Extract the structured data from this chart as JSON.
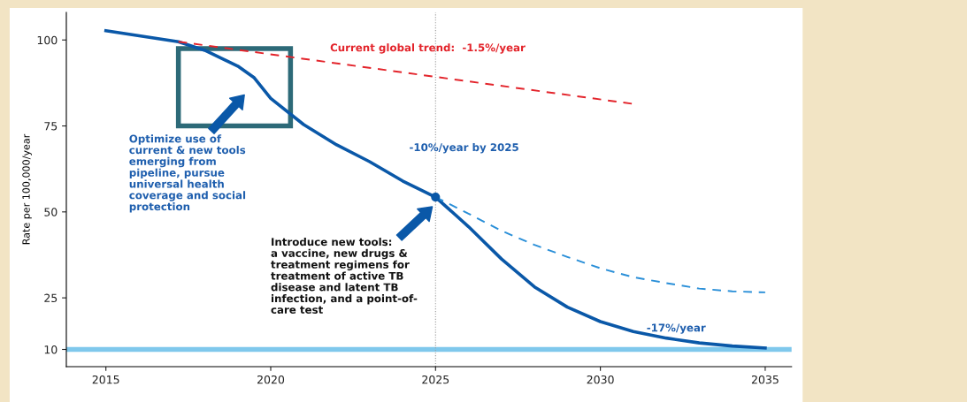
{
  "chart_data": {
    "type": "line",
    "ylabel": "Rate per 100,000/year",
    "xlim": [
      2013.8,
      2035.8
    ],
    "xticks": [
      2015,
      2020,
      2025,
      2030,
      2035
    ],
    "ylim": [
      5,
      108
    ],
    "yticks": [
      10,
      25,
      50,
      75,
      100
    ],
    "series": [
      {
        "color": "#0a58a8",
        "line_style": "solid",
        "x": [
          2015,
          2017.2,
          2018,
          2019,
          2019.5,
          2020,
          2021,
          2022,
          2023,
          2024,
          2025,
          2026,
          2027,
          2028,
          2029,
          2030,
          2031,
          2032,
          2033,
          2034,
          2035
        ],
        "values": [
          102.7,
          99.5,
          97,
          92.4,
          89,
          83,
          75.4,
          69.5,
          64.6,
          59,
          54.3,
          45.7,
          36.3,
          28.2,
          22.3,
          18.1,
          15.2,
          13.3,
          11.9,
          11,
          10.4
        ]
      },
      {
        "color": "#e3242b",
        "line_style": "dashed",
        "x": [
          2017.2,
          2031
        ],
        "values": [
          99.5,
          81.4
        ]
      },
      {
        "color": "#2a8fd8",
        "line_style": "dashed",
        "x": [
          2025,
          2026,
          2027,
          2028,
          2029,
          2030,
          2031,
          2032,
          2033,
          2034,
          2035
        ],
        "values": [
          54.3,
          49.5,
          44.5,
          40.4,
          36.9,
          33.6,
          31,
          29.3,
          27.7,
          26.9,
          26.6
        ]
      },
      {
        "type": "scatter",
        "marker": "circle",
        "color": "#0a58a8",
        "x": [
          2025
        ],
        "values": [
          54.3
        ]
      }
    ],
    "ref_lines": [
      {
        "axis": "y",
        "value": 10,
        "color": "#7fc8ec",
        "line_style": "solid"
      },
      {
        "axis": "x",
        "value": 2025,
        "color": "#9a9a9a",
        "line_style": "dotted"
      }
    ],
    "annotations": [
      "Current global trend:  -1.5%/year",
      "-10%/year by 2025",
      "-17%/year",
      "Optimize use of\ncurrent & new tools\nemerging from\npipeline, pursue\nuniversal health\ncoverage and social\nprotection",
      "Introduce new tools:\na vaccine, new drugs &\ntreatment regimens for\ntreatment of active TB\ndisease and latent TB\ninfection, and a point-of-\ncare test"
    ]
  }
}
